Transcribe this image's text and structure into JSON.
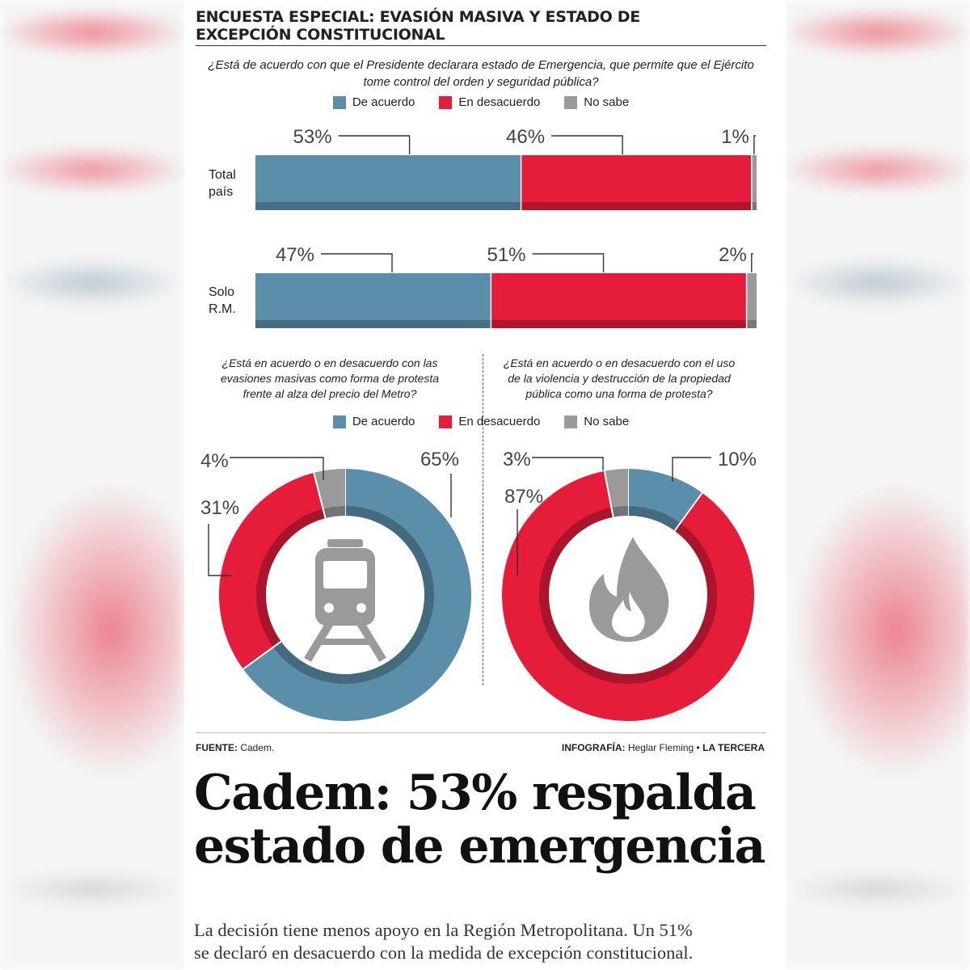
{
  "header": {
    "title_line1": "ENCUESTA ESPECIAL: EVASIÓN MASIVA Y ESTADO DE",
    "title_line2": "EXCEPCIÓN CONSTITUCIONAL"
  },
  "legend": {
    "agree": "De acuerdo",
    "disagree": "En desacuerdo",
    "unknown": "No sabe"
  },
  "colors": {
    "agree": "#5b8ea8",
    "disagree": "#e51d3a",
    "unknown": "#9a9a9a"
  },
  "chart_data": [
    {
      "type": "bar",
      "orientation": "horizontal-stacked-100",
      "title_line1": "¿Está de acuerdo con que el Presidente declarara estado de Emergencia, que permite que el Ejército",
      "title_line2": "tome control del orden y seguridad pública?",
      "series_names": [
        "De acuerdo",
        "En desacuerdo",
        "No sabe"
      ],
      "rows": [
        {
          "label_line1": "Total",
          "label_line2": "país",
          "values": [
            53,
            46,
            1
          ],
          "labels": [
            "53%",
            "46%",
            "1%"
          ]
        },
        {
          "label_line1": "Solo",
          "label_line2": "R.M.",
          "values": [
            47,
            51,
            2
          ],
          "labels": [
            "47%",
            "51%",
            "2%"
          ]
        }
      ]
    },
    {
      "type": "pie",
      "variant": "donut",
      "title_lines": [
        "¿Está en acuerdo o en desacuerdo con las",
        "evasiones masivas como forma de protesta",
        "frente al alza del precio del Metro?"
      ],
      "slices": [
        {
          "name": "De acuerdo",
          "value": 65,
          "label": "65%"
        },
        {
          "name": "En desacuerdo",
          "value": 31,
          "label": "31%"
        },
        {
          "name": "No sabe",
          "value": 4,
          "label": "4%"
        }
      ]
    },
    {
      "type": "pie",
      "variant": "donut",
      "title_lines": [
        "¿Está en acuerdo o en desacuerdo con el uso",
        "de la violencia y destrucción de la propiedad",
        "pública como una forma de protesta?"
      ],
      "slices": [
        {
          "name": "De acuerdo",
          "value": 10,
          "label": "10%"
        },
        {
          "name": "En desacuerdo",
          "value": 87,
          "label": "87%"
        },
        {
          "name": "No sabe",
          "value": 3,
          "label": "3%"
        }
      ]
    }
  ],
  "footer": {
    "source_label": "FUENTE:",
    "source_value": "Cadem.",
    "credit_label": "INFOGRAFÍA:",
    "credit_value": "Heglar Fleming •",
    "publication": "LA TERCERA"
  },
  "article": {
    "headline_line1": "Cadem: 53% respalda",
    "headline_line2": "estado de emergencia",
    "deck_line1": "La decisión tiene menos apoyo en la Región Metropolitana. Un 51%",
    "deck_line2": "se declaró en desacuerdo con la medida de excepción constitucional."
  }
}
